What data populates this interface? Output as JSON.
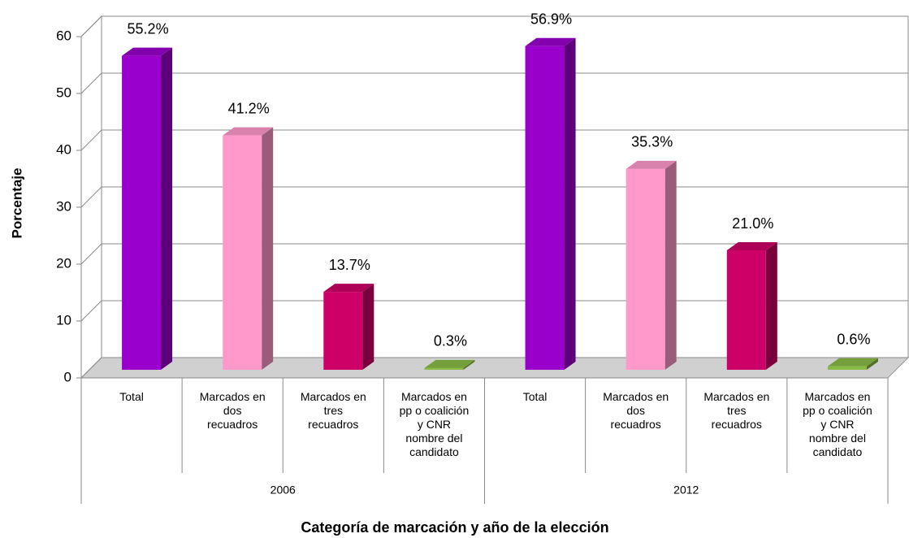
{
  "chart_data": {
    "type": "bar",
    "ylabel": "Porcentaje",
    "xlabel": "Categoría de marcación y año de la elección",
    "ylim": [
      0,
      60
    ],
    "yticks": [
      0,
      10,
      20,
      30,
      40,
      50,
      60
    ],
    "grid": true,
    "colors": [
      "#9900cc",
      "#ff99cc",
      "#cc0066",
      "#88bb44"
    ],
    "groups": [
      {
        "name": "2006",
        "categories": [
          "Total",
          "Marcados en\ndos\nrecuadros",
          "Marcados en\ntres\nrecuadros",
          "Marcados en\npp o coalición\ny CNR\nnombre del\ncandidato"
        ],
        "values": [
          55.2,
          41.2,
          13.7,
          0.3
        ],
        "value_labels": [
          "55.2%",
          "41.2%",
          "13.7%",
          "0.3%"
        ]
      },
      {
        "name": "2012",
        "categories": [
          "Total",
          "Marcados en\ndos\nrecuadros",
          "Marcados en\ntres\nrecuadros",
          "Marcados en\npp o coalición\ny CNR\nnombre del\ncandidato"
        ],
        "values": [
          56.9,
          35.3,
          21.0,
          0.6
        ],
        "value_labels": [
          "56.9%",
          "35.3%",
          "21.0%",
          "0.6%"
        ]
      }
    ]
  }
}
